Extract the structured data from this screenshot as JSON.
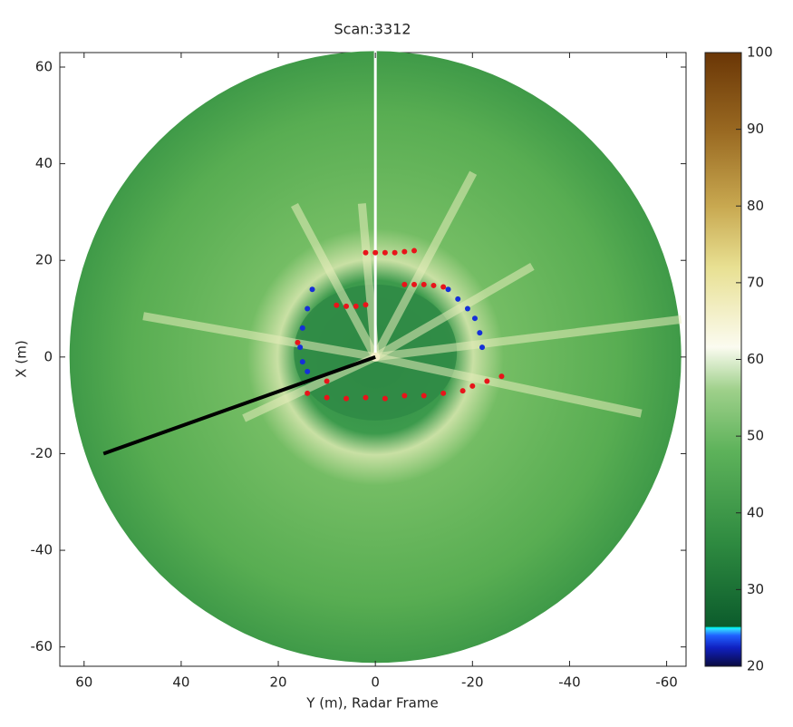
{
  "chart_data": {
    "type": "scatter",
    "title": "Scan:3312",
    "x_label": "Y (m), Radar Frame",
    "y_label": "X (m)",
    "xlim": [
      65,
      -64
    ],
    "ylim": [
      -64,
      63
    ],
    "xticks": [
      60,
      40,
      20,
      0,
      -20,
      -40,
      -60
    ],
    "yticks": [
      -60,
      -40,
      -20,
      0,
      20,
      40,
      60
    ],
    "colorbar": {
      "clim": [
        20,
        100
      ],
      "ticks": [
        20,
        30,
        40,
        50,
        60,
        70,
        80,
        90,
        100
      ]
    },
    "series": [
      {
        "color": "#e8141a",
        "x": [
          2,
          0,
          -2,
          -4,
          -6,
          -8,
          -6,
          -8,
          -10,
          -12,
          -14,
          8,
          6,
          4,
          2,
          14,
          10,
          6,
          2,
          -2,
          -6,
          -10,
          -14,
          -18,
          -20,
          -23,
          -26,
          16,
          10
        ],
        "y": [
          21.6,
          21.6,
          21.6,
          21.6,
          21.8,
          22,
          15,
          15,
          15,
          14.8,
          14.5,
          10.7,
          10.5,
          10.5,
          10.8,
          -7.5,
          -8.4,
          -8.6,
          -8.4,
          -8.6,
          -8,
          -8,
          -7.5,
          -7,
          -6,
          -5,
          -4,
          3,
          -5
        ]
      },
      {
        "color": "#1530d8",
        "x": [
          13,
          14,
          15,
          15.5,
          15,
          14,
          -15,
          -17,
          -19,
          -20.5,
          -21.5,
          -22
        ],
        "y": [
          14,
          10,
          6,
          2,
          -1,
          -3,
          14,
          12,
          10,
          8,
          5,
          2
        ]
      },
      {
        "color": "#000000",
        "style": "line",
        "x": [
          0,
          56
        ],
        "y": [
          0,
          -20
        ]
      }
    ]
  }
}
